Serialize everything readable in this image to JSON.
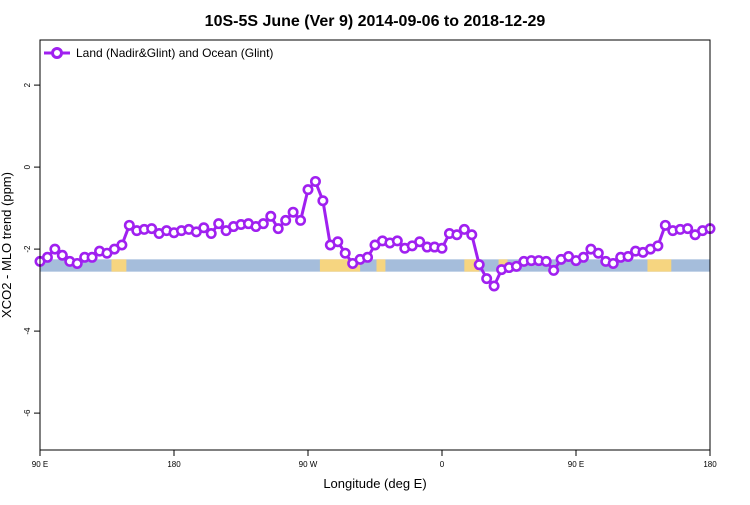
{
  "chart_data": {
    "type": "line",
    "title": "10S-5S June (Ver 9)   2014-09-06 to 2018-12-29",
    "xlabel": "Longitude (deg E)",
    "ylabel": "XCO2 - MLO trend (ppm)",
    "xlim": [
      90,
      540
    ],
    "ylim": [
      -6.9,
      3.1
    ],
    "x_ticks": [
      {
        "value": 90,
        "label": "90 E"
      },
      {
        "value": 180,
        "label": "180"
      },
      {
        "value": 270,
        "label": "90 W"
      },
      {
        "value": 360,
        "label": "0"
      },
      {
        "value": 450,
        "label": "90 E"
      },
      {
        "value": 540,
        "label": "180"
      }
    ],
    "y_ticks": [
      {
        "value": 2,
        "label": "2"
      },
      {
        "value": 0,
        "label": "0"
      },
      {
        "value": -2,
        "label": "-2"
      },
      {
        "value": -4,
        "label": "-4"
      },
      {
        "value": -6,
        "label": "-6"
      }
    ],
    "grid": false,
    "legend_position": "top-left",
    "colors": {
      "series": "#a020f0",
      "ocean_band": "#a5bddb",
      "land_band": "#f6d580"
    },
    "band": {
      "y_range": [
        -2.55,
        -2.25
      ]
    },
    "land_segments": [
      [
        138,
        148
      ],
      [
        278,
        305
      ],
      [
        316,
        322
      ],
      [
        375,
        385
      ],
      [
        398,
        404
      ],
      [
        498,
        514
      ]
    ],
    "series": [
      {
        "name": "Land (Nadir&Glint) and Ocean (Glint)",
        "x": [
          90,
          95,
          100,
          105,
          110,
          115,
          120,
          125,
          130,
          135,
          140,
          145,
          150,
          155,
          160,
          165,
          170,
          175,
          180,
          185,
          190,
          195,
          200,
          205,
          210,
          215,
          220,
          225,
          230,
          235,
          240,
          245,
          250,
          255,
          260,
          265,
          270,
          275,
          280,
          285,
          290,
          295,
          300,
          305,
          310,
          315,
          320,
          325,
          330,
          335,
          340,
          345,
          350,
          355,
          360,
          365,
          370,
          375,
          380,
          385,
          390,
          395,
          400,
          405,
          410,
          415,
          420,
          425,
          430,
          435,
          440,
          445,
          450,
          455,
          460,
          465,
          470,
          475,
          480,
          485,
          490,
          495,
          500,
          505,
          510,
          515,
          520,
          525,
          530,
          535,
          540
        ],
        "y": [
          -2.3,
          -2.2,
          -2.0,
          -2.15,
          -2.3,
          -2.35,
          -2.2,
          -2.2,
          -2.05,
          -2.1,
          -2.0,
          -1.9,
          -1.42,
          -1.55,
          -1.52,
          -1.5,
          -1.62,
          -1.55,
          -1.6,
          -1.55,
          -1.52,
          -1.58,
          -1.48,
          -1.62,
          -1.38,
          -1.55,
          -1.45,
          -1.4,
          -1.38,
          -1.45,
          -1.38,
          -1.2,
          -1.5,
          -1.3,
          -1.1,
          -1.3,
          -0.55,
          -0.35,
          -0.82,
          -1.9,
          -1.82,
          -2.1,
          -2.35,
          -2.25,
          -2.2,
          -1.9,
          -1.8,
          -1.85,
          -1.8,
          -1.98,
          -1.92,
          -1.82,
          -1.95,
          -1.95,
          -1.98,
          -1.62,
          -1.65,
          -1.52,
          -1.65,
          -2.38,
          -2.72,
          -2.9,
          -2.5,
          -2.45,
          -2.42,
          -2.3,
          -2.28,
          -2.28,
          -2.3,
          -2.52,
          -2.25,
          -2.18,
          -2.28,
          -2.2,
          -2.0,
          -2.1,
          -2.3,
          -2.35,
          -2.2,
          -2.18,
          -2.05,
          -2.08,
          -2.0,
          -1.92,
          -1.42,
          -1.55,
          -1.52,
          -1.5,
          -1.65,
          -1.55,
          -1.5
        ]
      }
    ]
  }
}
